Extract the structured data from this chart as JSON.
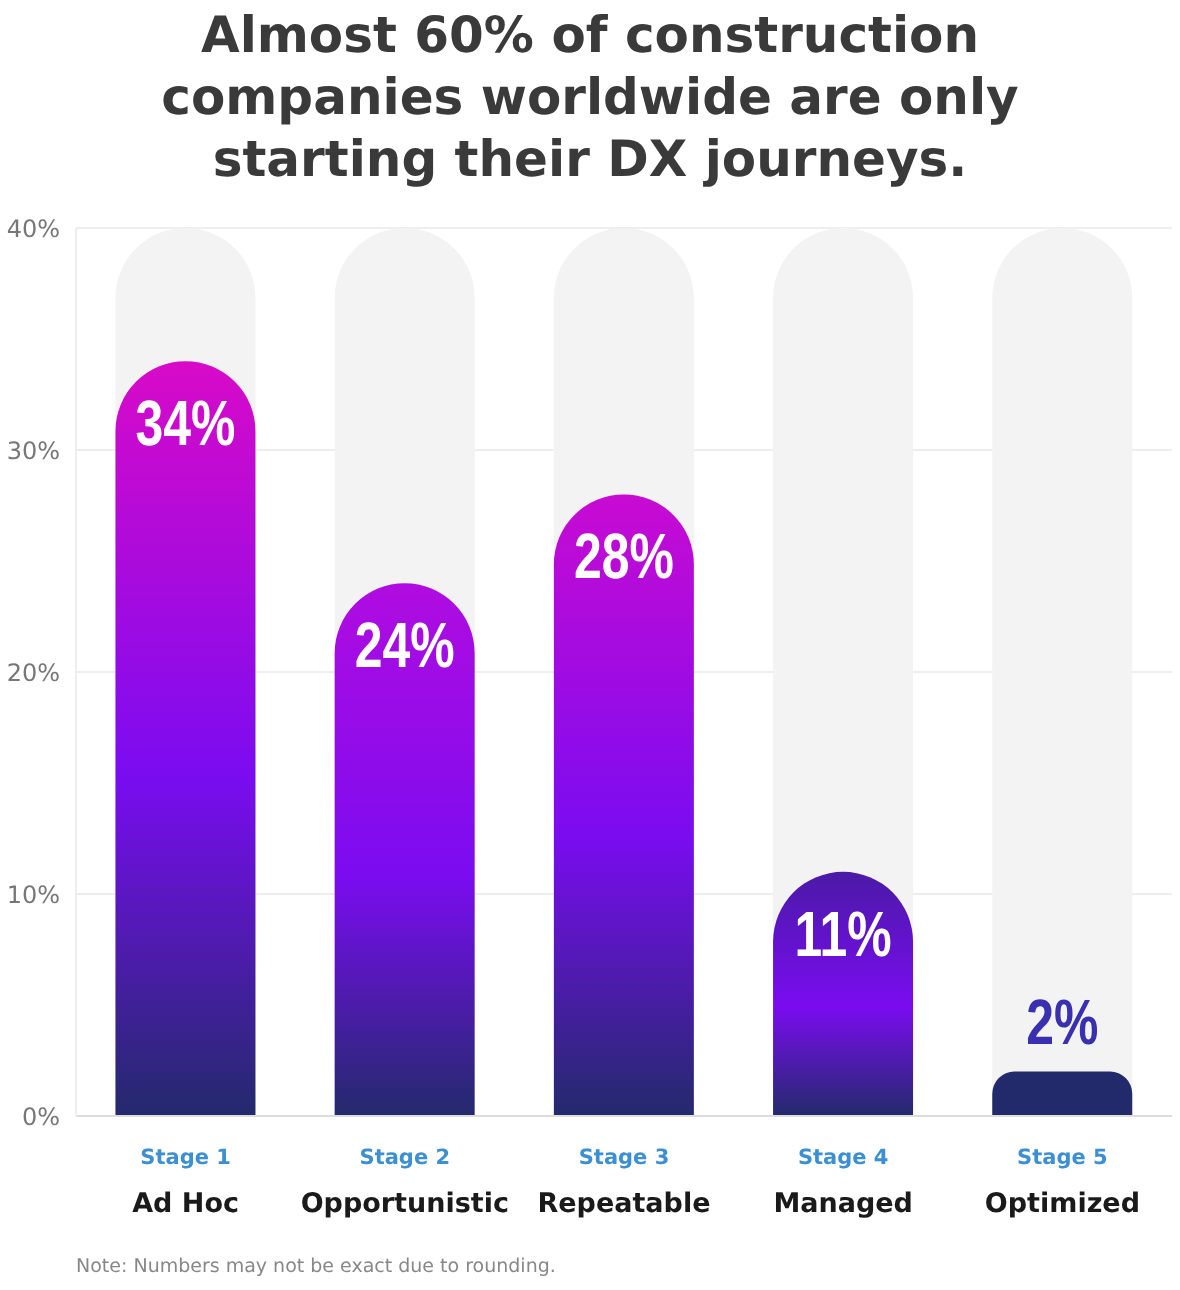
{
  "chart_data": {
    "type": "bar",
    "title": "Almost 60% of construction companies worldwide are only starting their DX journeys.",
    "categories": [
      "Stage 1\nAd Hoc",
      "Stage 2\nOpportunistic",
      "Stage 3\nRepeatable",
      "Stage 4\nManaged",
      "Stage 5\nOptimized"
    ],
    "values": [
      34,
      24,
      28,
      11,
      2
    ],
    "colors": [
      "#d80ac8",
      "#b00ce0",
      "#c80bd2",
      "#4a1aa6",
      "#232a6c"
    ],
    "value_labels": [
      "34%",
      "24%",
      "28%",
      "11%",
      "2%"
    ],
    "ylim": [
      0,
      40
    ],
    "yticks": [
      {
        "value": 0,
        "label": "0%"
      },
      {
        "value": 10,
        "label": "10%"
      },
      {
        "value": 20,
        "label": "20%"
      },
      {
        "value": 30,
        "label": "30%"
      },
      {
        "value": 40,
        "label": "40%"
      }
    ],
    "grid": "y",
    "legend": false,
    "annotations": [
      "Note: Numbers may not be exact due to rounding."
    ]
  }
}
